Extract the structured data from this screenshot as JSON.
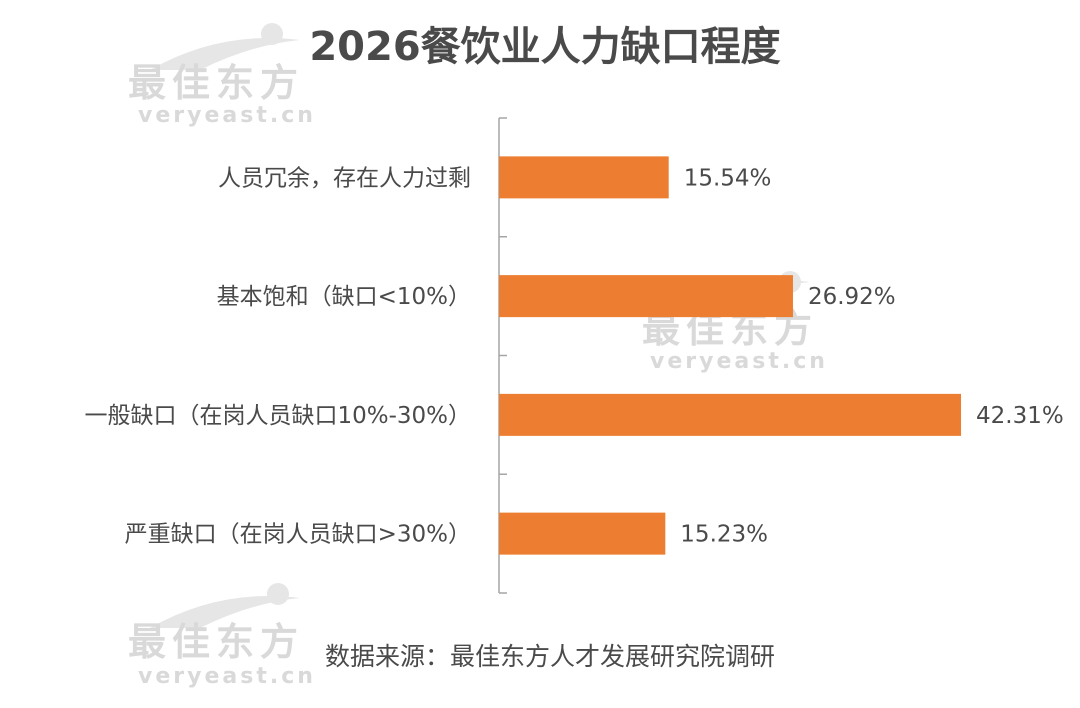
{
  "watermark": {
    "brand_cn": "最佳东方",
    "brand_en": "veryeast.cn"
  },
  "source_note": "数据来源：最佳东方人才发展研究院调研",
  "colors": {
    "bar": "#ED7D31",
    "axis": "#a6a6a6",
    "text": "#4a4a4a",
    "watermark": "#d9d9d9"
  },
  "chart_data": {
    "type": "bar",
    "orientation": "horizontal",
    "title": "2026餐饮业人力缺口程度",
    "xlabel": "",
    "ylabel": "",
    "grid": false,
    "xlim": [
      0,
      45
    ],
    "categories": [
      "人员冗余，存在人力过剩",
      "基本饱和（缺口<10%）",
      "一般缺口（在岗人员缺口10%-30%）",
      "严重缺口（在岗人员缺口>30%）"
    ],
    "values": [
      15.54,
      26.92,
      42.31,
      15.23
    ],
    "value_labels": [
      "15.54%",
      "26.92%",
      "42.31%",
      "15.23%"
    ]
  }
}
